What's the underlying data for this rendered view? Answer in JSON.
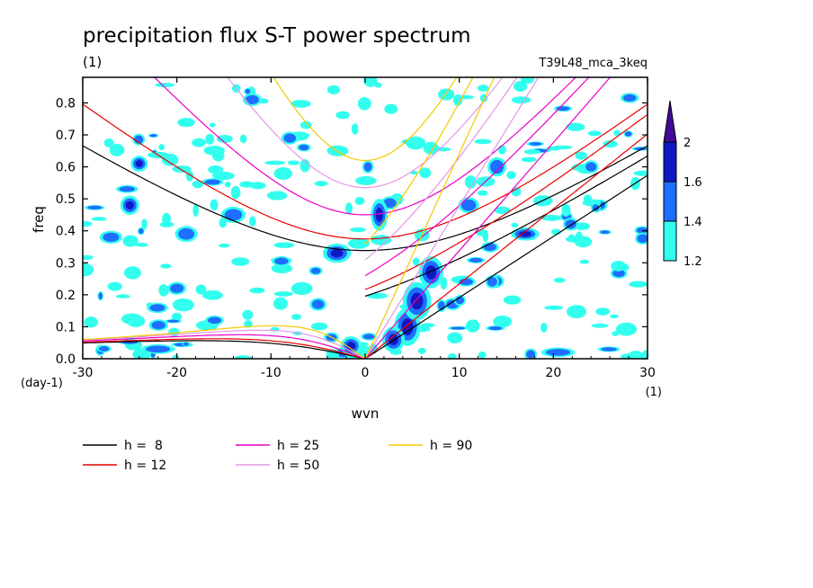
{
  "chart_data": {
    "type": "contour",
    "title": "precipitation flux S-T power spectrum",
    "subtitle_left": "(1)",
    "subtitle_right": "T39L48_mca_3keq",
    "xlabel": "wvn",
    "ylabel": "freq",
    "x_unit": "(1)",
    "y_unit": "(day-1)",
    "xlim": [
      -30,
      30
    ],
    "ylim": [
      0,
      0.88
    ],
    "x_ticks": [
      -30,
      -20,
      -10,
      0,
      10,
      20,
      30
    ],
    "x_tick_labels": [
      "-30",
      "-20",
      "-10",
      "0",
      "10",
      "20",
      "30"
    ],
    "y_ticks": [
      0,
      0.1,
      0.2,
      0.3,
      0.4,
      0.5,
      0.6,
      0.7,
      0.8
    ],
    "y_tick_labels": [
      "0.0",
      "0.1",
      "0.2",
      "0.3",
      "0.4",
      "0.5",
      "0.6",
      "0.7",
      "0.8"
    ],
    "colorbar": {
      "levels": [
        1.2,
        1.4,
        1.6,
        2
      ],
      "level_labels": [
        "1.2",
        "1.4",
        "1.6",
        "2"
      ],
      "colors": [
        "#33ffee",
        "#1e6eff",
        "#0f19c3",
        "#410a96"
      ]
    },
    "dispersion_curves": [
      {
        "name": "h =  8",
        "h": 8,
        "color": "#000000"
      },
      {
        "name": "h = 12",
        "h": 12,
        "color": "#e60000"
      },
      {
        "name": "h = 25",
        "h": 25,
        "color": "#e600c8"
      },
      {
        "name": "h = 50",
        "h": 50,
        "color": "#e696e6"
      },
      {
        "name": "h = 90",
        "h": 90,
        "color": "#f5c800"
      }
    ],
    "power_blobs": [
      {
        "x": 4.5,
        "y": 0.1,
        "rx": 1.4,
        "ry": 0.06,
        "level": 3
      },
      {
        "x": 5.5,
        "y": 0.18,
        "rx": 1.5,
        "ry": 0.06,
        "level": 3
      },
      {
        "x": 3,
        "y": 0.06,
        "rx": 1.2,
        "ry": 0.04,
        "level": 2
      },
      {
        "x": 7,
        "y": 0.27,
        "rx": 1.3,
        "ry": 0.05,
        "level": 2
      },
      {
        "x": 1.5,
        "y": 0.45,
        "rx": 0.9,
        "ry": 0.05,
        "level": 2
      },
      {
        "x": -3,
        "y": 0.33,
        "rx": 1.5,
        "ry": 0.03,
        "level": 2
      },
      {
        "x": -1.5,
        "y": 0.04,
        "rx": 1.1,
        "ry": 0.03,
        "level": 2
      },
      {
        "x": -22,
        "y": 0.03,
        "rx": 1.8,
        "ry": 0.015,
        "level": 1
      },
      {
        "x": -25,
        "y": 0.48,
        "rx": 1.0,
        "ry": 0.03,
        "level": 2
      },
      {
        "x": -19,
        "y": 0.39,
        "rx": 1.2,
        "ry": 0.025,
        "level": 1
      },
      {
        "x": -24,
        "y": 0.61,
        "rx": 0.9,
        "ry": 0.025,
        "level": 2
      },
      {
        "x": -14,
        "y": 0.45,
        "rx": 1.3,
        "ry": 0.025,
        "level": 1
      },
      {
        "x": 17,
        "y": 0.39,
        "rx": 1.5,
        "ry": 0.02,
        "level": 2
      },
      {
        "x": 20.5,
        "y": 0.02,
        "rx": 1.8,
        "ry": 0.015,
        "level": 1
      },
      {
        "x": 14,
        "y": 0.6,
        "rx": 1.0,
        "ry": 0.03,
        "level": 1
      },
      {
        "x": -8,
        "y": 0.69,
        "rx": 0.9,
        "ry": 0.02,
        "level": 1
      },
      {
        "x": -12,
        "y": 0.81,
        "rx": 1.0,
        "ry": 0.02,
        "level": 1
      },
      {
        "x": -27,
        "y": 0.38,
        "rx": 1.2,
        "ry": 0.02,
        "level": 1
      },
      {
        "x": -20,
        "y": 0.22,
        "rx": 1.0,
        "ry": 0.02,
        "level": 1
      },
      {
        "x": 11,
        "y": 0.48,
        "rx": 1.1,
        "ry": 0.025,
        "level": 1
      },
      {
        "x": 24,
        "y": 0.6,
        "rx": 0.8,
        "ry": 0.02,
        "level": 1
      },
      {
        "x": -5,
        "y": 0.17,
        "rx": 0.9,
        "ry": 0.02,
        "level": 1
      },
      {
        "x": 0.3,
        "y": 0.6,
        "rx": 0.6,
        "ry": 0.02,
        "level": 1
      },
      {
        "x": -16,
        "y": 0.12,
        "rx": 1.0,
        "ry": 0.015,
        "level": 1
      }
    ],
    "noise_seed": 7,
    "noise_count": 240
  }
}
